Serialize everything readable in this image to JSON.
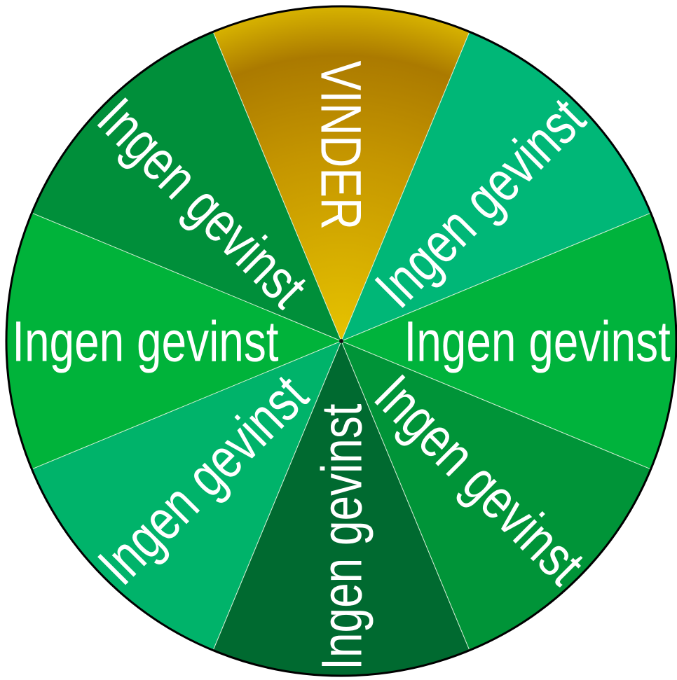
{
  "wheel": {
    "segments": [
      {
        "label": "VINDER",
        "color": "#c9a000",
        "highlight": true
      },
      {
        "label": "Ingen gevinst",
        "color": "#00b777",
        "highlight": false
      },
      {
        "label": "Ingen gevinst",
        "color": "#00b33c",
        "highlight": false
      },
      {
        "label": "Ingen gevinst",
        "color": "#009438",
        "highlight": false
      },
      {
        "label": "Ingen gevinst",
        "color": "#006a30",
        "highlight": false
      },
      {
        "label": "Ingen gevinst",
        "color": "#00b36a",
        "highlight": false
      },
      {
        "label": "Ingen gevinst",
        "color": "#00b33a",
        "highlight": false
      },
      {
        "label": "Ingen gevinst",
        "color": "#008f3a",
        "highlight": false
      }
    ],
    "colors": {
      "rim": "#000000",
      "divider": "#d8f0d8",
      "winner_light": "#e0c000",
      "winner_dark": "#a87800"
    }
  }
}
